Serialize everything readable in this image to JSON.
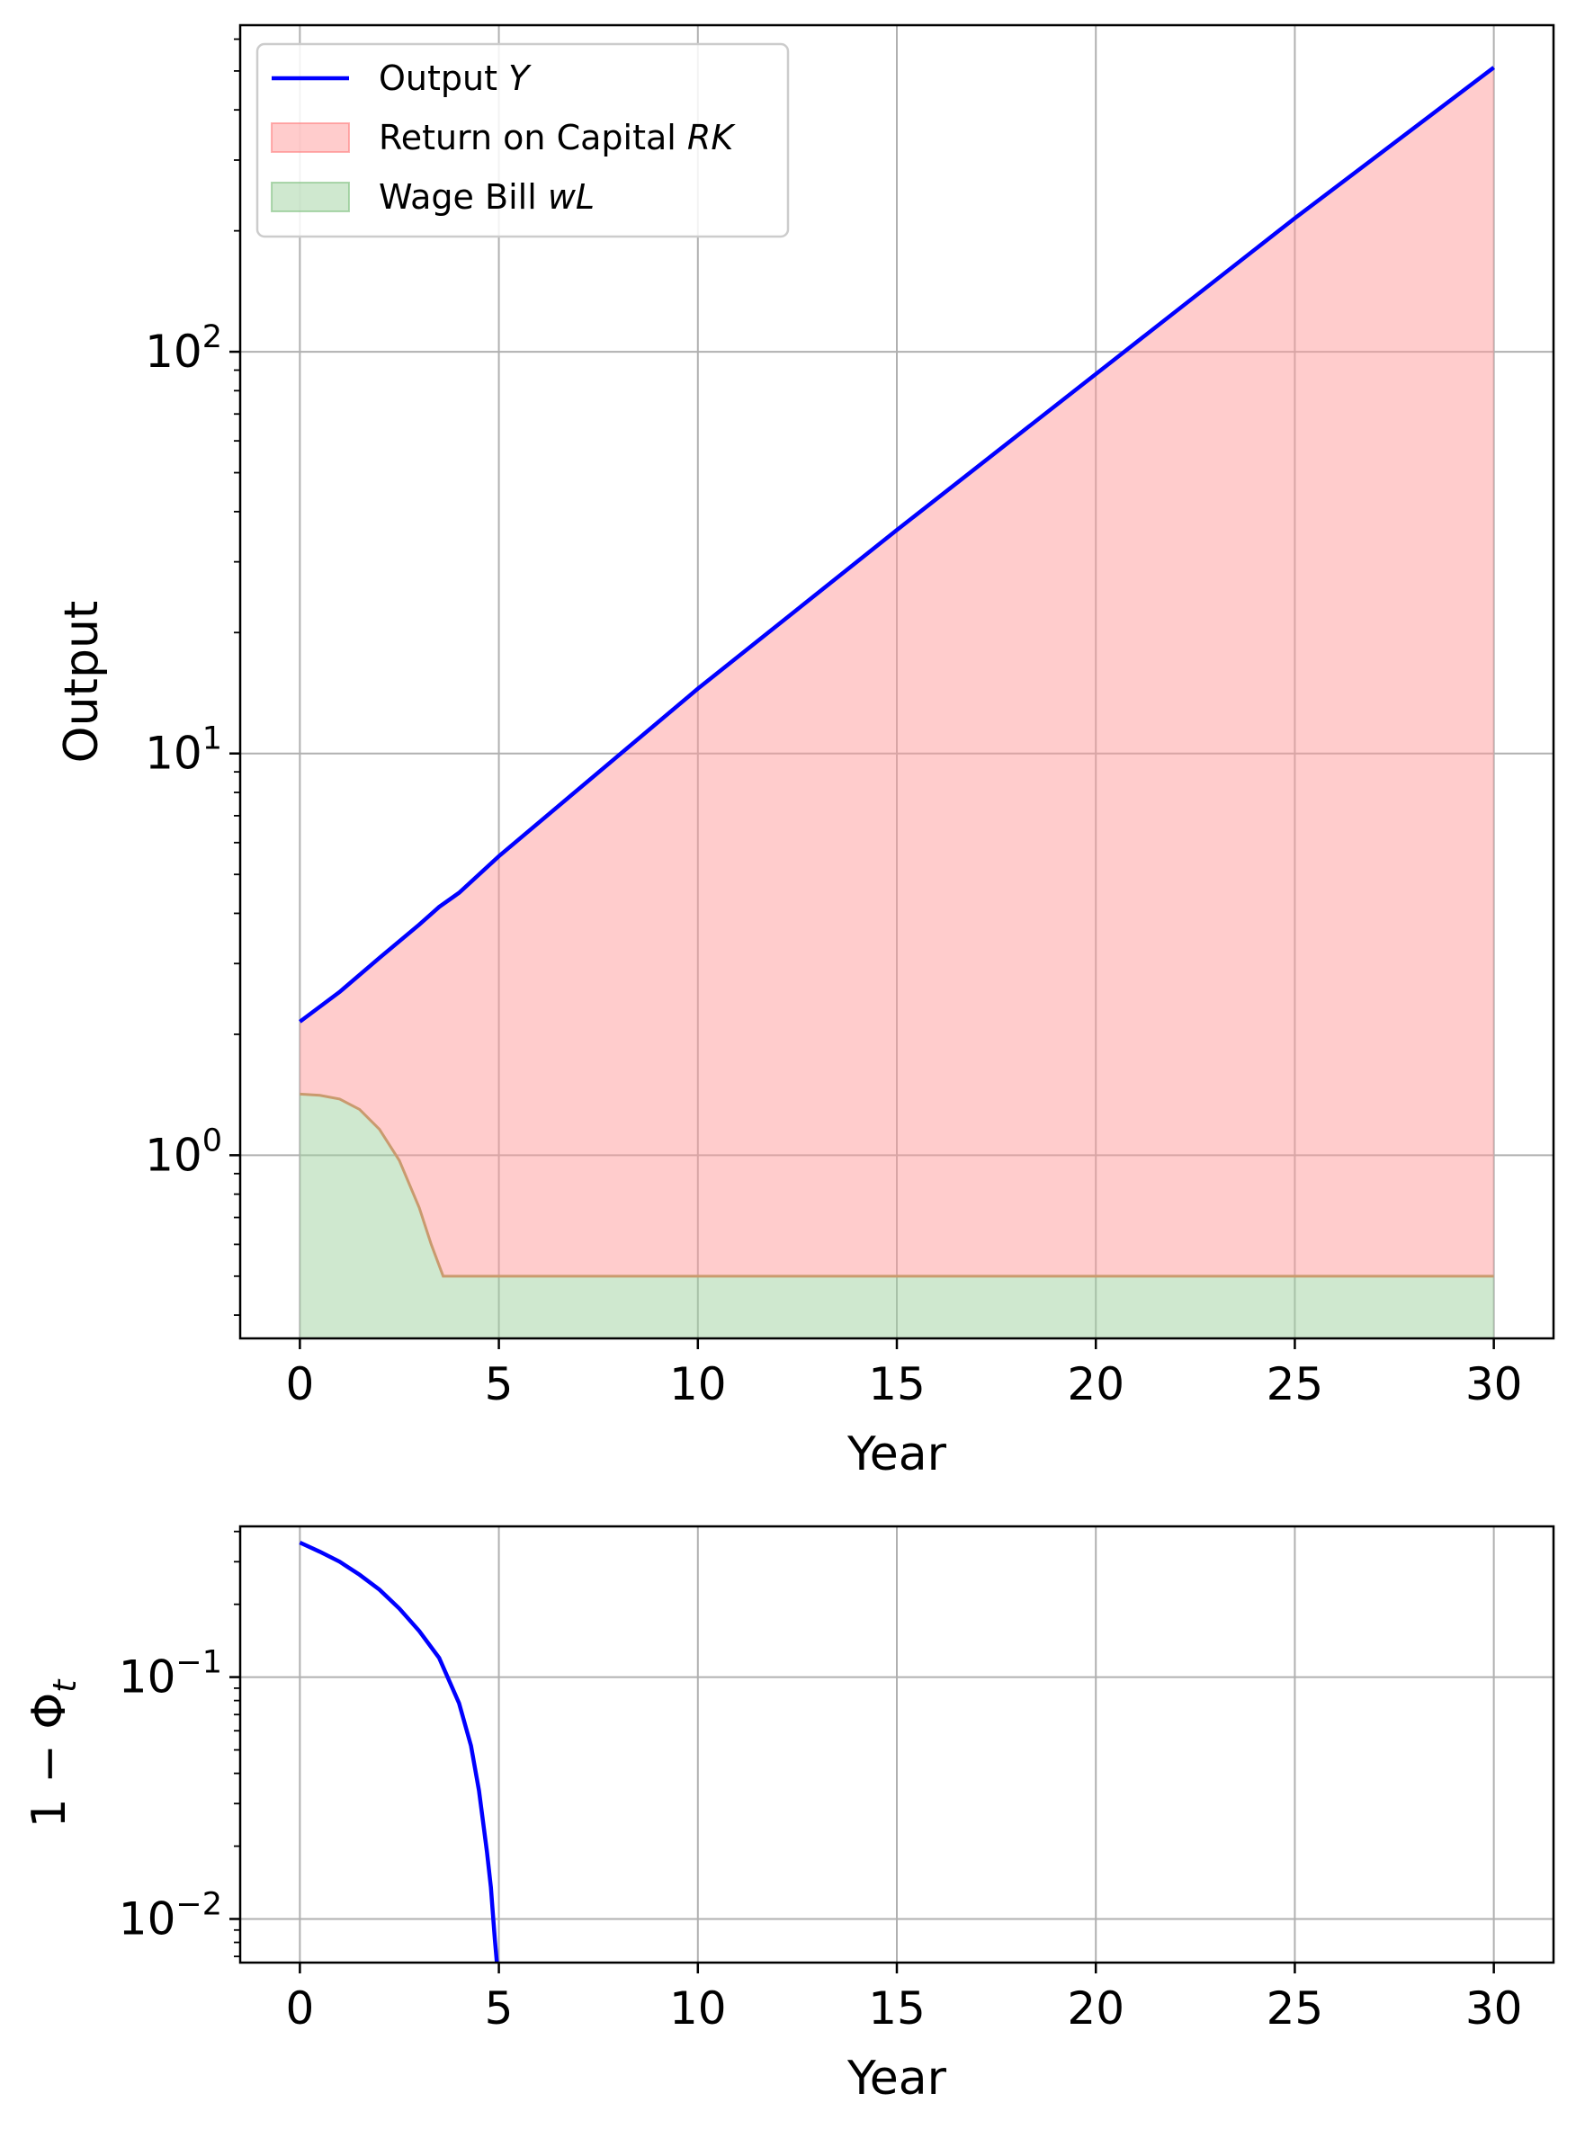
{
  "colors": {
    "output_line": "#0000ff",
    "rk_fill": "#ff9999",
    "wl_fill": "#9fd19f",
    "grid": "#b0b0b0",
    "fill_edge": "#c99a6e"
  },
  "chart_data": [
    {
      "type": "area",
      "xlabel": "Year",
      "ylabel": "Output",
      "yscale": "log",
      "xlim": [
        -1.5,
        31.5
      ],
      "ylim": [
        0.35,
        650
      ],
      "grid": true,
      "legend_position": "top-left",
      "x_ticks": [
        0,
        5,
        10,
        15,
        20,
        25,
        30
      ],
      "y_ticks": [
        {
          "value": 1,
          "base": "10",
          "exp": "0"
        },
        {
          "value": 10,
          "base": "10",
          "exp": "1"
        },
        {
          "value": 100,
          "base": "10",
          "exp": "2"
        }
      ],
      "legend": [
        {
          "text": "Output ",
          "math": "Y",
          "kind": "line"
        },
        {
          "text": "Return on Capital ",
          "math": "RK",
          "kind": "fill-red"
        },
        {
          "text": "Wage Bill ",
          "math": "wL",
          "kind": "fill-green"
        }
      ],
      "series": [
        {
          "name": "Output Y",
          "kind": "line",
          "x": [
            0,
            1,
            2,
            3,
            3.5,
            4,
            5,
            10,
            15,
            20,
            25,
            30
          ],
          "y": [
            2.15,
            2.55,
            3.1,
            3.75,
            4.15,
            4.5,
            5.55,
            14.5,
            36,
            88,
            215,
            510
          ]
        },
        {
          "name": "Return on Capital RK",
          "kind": "fill-between",
          "note_lower": "Wage Bill wL",
          "upper": "Output Y"
        },
        {
          "name": "Wage Bill wL",
          "kind": "fill-to-bottom",
          "x": [
            0,
            0.5,
            1,
            1.5,
            2,
            2.5,
            3,
            3.3,
            3.6,
            5,
            10,
            15,
            20,
            25,
            30
          ],
          "y": [
            1.42,
            1.41,
            1.38,
            1.3,
            1.16,
            0.97,
            0.74,
            0.6,
            0.5,
            0.5,
            0.5,
            0.5,
            0.5,
            0.5,
            0.5
          ]
        }
      ]
    },
    {
      "type": "line",
      "xlabel": "Year",
      "ylabel_parts": {
        "main": "1 − Φ",
        "sub": "t"
      },
      "yscale": "log",
      "xlim": [
        -1.5,
        31.5
      ],
      "ylim": [
        0.0066,
        0.42
      ],
      "grid": true,
      "x_ticks": [
        0,
        5,
        10,
        15,
        20,
        25,
        30
      ],
      "y_ticks": [
        {
          "value": 0.01,
          "base": "10",
          "exp": "−2"
        },
        {
          "value": 0.1,
          "base": "10",
          "exp": "−1"
        }
      ],
      "series": [
        {
          "name": "1 − Φt",
          "x": [
            0,
            0.5,
            1,
            1.5,
            2,
            2.5,
            3,
            3.5,
            4,
            4.3,
            4.5,
            4.7,
            4.8,
            4.85,
            4.9,
            4.95
          ],
          "y": [
            0.36,
            0.33,
            0.3,
            0.265,
            0.23,
            0.192,
            0.155,
            0.12,
            0.078,
            0.052,
            0.034,
            0.019,
            0.0135,
            0.0105,
            0.0082,
            0.0066
          ]
        }
      ]
    }
  ]
}
